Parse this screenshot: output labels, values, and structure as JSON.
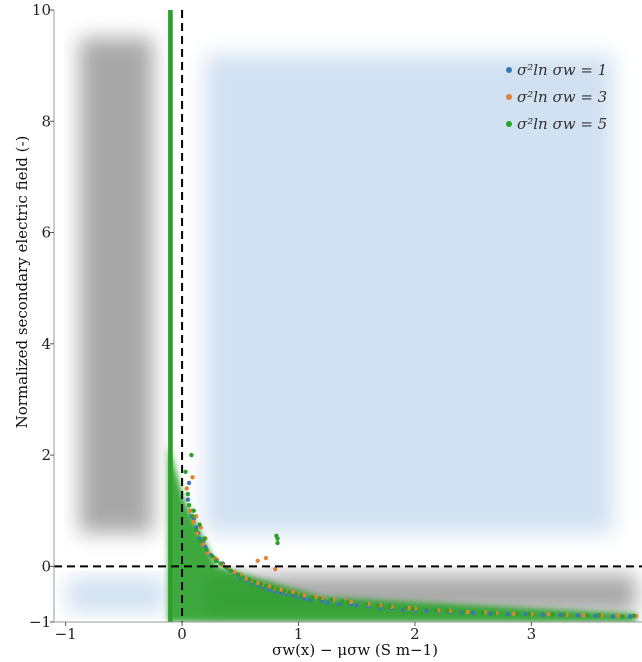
{
  "chart_data": {
    "type": "scatter",
    "xlabel": "σw(x) − μσw (S m−1)",
    "ylabel": "Normalized secondary electric field (-)",
    "xlim": [
      -1.1,
      3.95
    ],
    "ylim": [
      -1.0,
      10.0
    ],
    "x_ticks": [
      {
        "value": -1,
        "label": "−1"
      },
      {
        "value": 0,
        "label": "0"
      },
      {
        "value": 1,
        "label": "1"
      },
      {
        "value": 2,
        "label": "2"
      },
      {
        "value": 3,
        "label": "3"
      }
    ],
    "y_ticks": [
      {
        "value": -1,
        "label": "−1"
      },
      {
        "value": 0,
        "label": "0"
      },
      {
        "value": 2,
        "label": "2"
      },
      {
        "value": 4,
        "label": "4"
      },
      {
        "value": 6,
        "label": "6"
      },
      {
        "value": 8,
        "label": "8"
      },
      {
        "value": 10,
        "label": "10"
      }
    ],
    "grid": false,
    "legend_placement": "top-right",
    "reference_lines": [
      {
        "orientation": "vertical",
        "value": 0,
        "style": "dashed"
      },
      {
        "orientation": "horizontal",
        "value": 0,
        "style": "dashed"
      }
    ],
    "regions": [
      {
        "name": "upper-right",
        "x": [
          0.2,
          3.7
        ],
        "y": [
          0.6,
          9.2
        ],
        "color": "#c9dcef"
      },
      {
        "name": "lower-left",
        "x": [
          -0.98,
          -0.15
        ],
        "y": [
          -0.82,
          -0.2
        ],
        "color": "#c9dcef"
      },
      {
        "name": "upper-left",
        "x": [
          -0.88,
          -0.25
        ],
        "y": [
          0.6,
          9.5
        ],
        "color": "#9a9a9a"
      },
      {
        "name": "lower-right",
        "x": [
          0.2,
          3.9
        ],
        "y": [
          -0.85,
          -0.15
        ],
        "color": "#9a9a9a"
      }
    ],
    "series": [
      {
        "name": "σ²ln σw = 1",
        "color": "#3a78b5",
        "points": [
          [
            0.05,
            1.2
          ],
          [
            0.08,
            0.9
          ],
          [
            0.12,
            0.7
          ],
          [
            0.15,
            0.5
          ],
          [
            0.2,
            0.35
          ],
          [
            0.25,
            0.2
          ],
          [
            0.3,
            0.1
          ],
          [
            0.4,
            -0.05
          ],
          [
            0.5,
            -0.2
          ],
          [
            0.6,
            -0.3
          ],
          [
            0.7,
            -0.38
          ],
          [
            0.8,
            -0.45
          ],
          [
            0.9,
            -0.5
          ],
          [
            1.0,
            -0.55
          ],
          [
            1.1,
            -0.6
          ],
          [
            1.2,
            -0.62
          ],
          [
            1.35,
            -0.68
          ],
          [
            1.5,
            -0.7
          ],
          [
            1.7,
            -0.75
          ],
          [
            1.9,
            -0.78
          ],
          [
            2.1,
            -0.8
          ],
          [
            2.3,
            -0.82
          ],
          [
            2.5,
            -0.84
          ],
          [
            2.8,
            -0.86
          ],
          [
            3.1,
            -0.87
          ],
          [
            3.4,
            -0.88
          ],
          [
            3.7,
            -0.9
          ],
          [
            0.1,
            0.85
          ],
          [
            0.18,
            0.45
          ],
          [
            0.35,
            0.05
          ],
          [
            0.45,
            -0.12
          ],
          [
            0.55,
            -0.25
          ],
          [
            0.65,
            -0.33
          ],
          [
            0.75,
            -0.42
          ],
          [
            0.85,
            -0.48
          ],
          [
            0.95,
            -0.52
          ],
          [
            1.05,
            -0.58
          ],
          [
            1.25,
            -0.65
          ],
          [
            1.45,
            -0.69
          ],
          [
            1.6,
            -0.72
          ],
          [
            1.8,
            -0.76
          ],
          [
            2.0,
            -0.79
          ],
          [
            2.2,
            -0.81
          ],
          [
            2.4,
            -0.83
          ],
          [
            2.65,
            -0.85
          ],
          [
            2.95,
            -0.86
          ],
          [
            3.25,
            -0.87
          ],
          [
            3.55,
            -0.89
          ],
          [
            3.85,
            -0.9
          ],
          [
            0.06,
            1.5
          ],
          [
            0.14,
            0.6
          ]
        ]
      },
      {
        "name": "σ²ln σw = 3",
        "color": "#e08533",
        "points": [
          [
            0.04,
            1.4
          ],
          [
            0.07,
            1.0
          ],
          [
            0.1,
            0.8
          ],
          [
            0.13,
            0.6
          ],
          [
            0.18,
            0.4
          ],
          [
            0.22,
            0.25
          ],
          [
            0.28,
            0.15
          ],
          [
            0.35,
            0.02
          ],
          [
            0.45,
            -0.1
          ],
          [
            0.55,
            -0.22
          ],
          [
            0.65,
            -0.3
          ],
          [
            0.75,
            -0.36
          ],
          [
            0.85,
            -0.42
          ],
          [
            0.95,
            -0.46
          ],
          [
            1.05,
            -0.52
          ],
          [
            1.15,
            -0.55
          ],
          [
            1.3,
            -0.6
          ],
          [
            1.45,
            -0.64
          ],
          [
            1.6,
            -0.68
          ],
          [
            1.8,
            -0.73
          ],
          [
            2.0,
            -0.76
          ],
          [
            2.2,
            -0.79
          ],
          [
            2.45,
            -0.82
          ],
          [
            2.7,
            -0.84
          ],
          [
            3.0,
            -0.86
          ],
          [
            3.3,
            -0.87
          ],
          [
            3.6,
            -0.88
          ],
          [
            3.9,
            -0.89
          ],
          [
            0.12,
            0.9
          ],
          [
            0.2,
            0.5
          ],
          [
            0.3,
            0.12
          ],
          [
            0.4,
            -0.02
          ],
          [
            0.5,
            -0.15
          ],
          [
            0.6,
            -0.26
          ],
          [
            0.7,
            -0.33
          ],
          [
            0.8,
            -0.4
          ],
          [
            0.9,
            -0.45
          ],
          [
            1.0,
            -0.5
          ],
          [
            1.2,
            -0.57
          ],
          [
            1.4,
            -0.62
          ],
          [
            1.7,
            -0.7
          ],
          [
            1.95,
            -0.75
          ],
          [
            2.3,
            -0.8
          ],
          [
            2.6,
            -0.83
          ],
          [
            2.85,
            -0.85
          ],
          [
            3.15,
            -0.86
          ],
          [
            3.45,
            -0.88
          ],
          [
            3.75,
            -0.89
          ],
          [
            0.8,
            -0.05
          ],
          [
            0.65,
            0.1
          ],
          [
            0.72,
            0.15
          ],
          [
            0.09,
            1.6
          ],
          [
            0.16,
            0.7
          ]
        ]
      },
      {
        "name": "σ²ln σw = 5",
        "color": "#2ca02c",
        "points": [
          [
            0.03,
            1.7
          ],
          [
            0.06,
            1.1
          ],
          [
            0.09,
            0.9
          ],
          [
            0.12,
            0.65
          ],
          [
            0.16,
            0.45
          ],
          [
            0.21,
            0.3
          ],
          [
            0.26,
            0.18
          ],
          [
            0.33,
            0.05
          ],
          [
            0.42,
            -0.08
          ],
          [
            0.52,
            -0.2
          ],
          [
            0.62,
            -0.28
          ],
          [
            0.72,
            -0.35
          ],
          [
            0.82,
            -0.41
          ],
          [
            0.92,
            -0.47
          ],
          [
            1.02,
            -0.52
          ],
          [
            1.12,
            -0.56
          ],
          [
            1.28,
            -0.6
          ],
          [
            1.42,
            -0.64
          ],
          [
            1.58,
            -0.68
          ],
          [
            1.78,
            -0.72
          ],
          [
            1.98,
            -0.76
          ],
          [
            2.18,
            -0.79
          ],
          [
            2.42,
            -0.82
          ],
          [
            2.68,
            -0.84
          ],
          [
            2.98,
            -0.86
          ],
          [
            3.28,
            -0.87
          ],
          [
            3.58,
            -0.88
          ],
          [
            3.88,
            -0.89
          ],
          [
            0.1,
            1.0
          ],
          [
            0.19,
            0.5
          ],
          [
            0.29,
            0.1
          ],
          [
            0.38,
            -0.02
          ],
          [
            0.48,
            -0.15
          ],
          [
            0.58,
            -0.24
          ],
          [
            0.68,
            -0.32
          ],
          [
            0.78,
            -0.38
          ],
          [
            0.88,
            -0.44
          ],
          [
            0.98,
            -0.5
          ],
          [
            1.18,
            -0.58
          ],
          [
            1.38,
            -0.63
          ],
          [
            1.68,
            -0.7
          ],
          [
            1.92,
            -0.75
          ],
          [
            2.28,
            -0.8
          ],
          [
            2.58,
            -0.83
          ],
          [
            2.88,
            -0.85
          ],
          [
            3.18,
            -0.86
          ],
          [
            3.48,
            -0.88
          ],
          [
            3.78,
            -0.9
          ],
          [
            0.82,
            0.5
          ],
          [
            0.82,
            0.42
          ],
          [
            0.81,
            0.55
          ],
          [
            0.08,
            2.0
          ],
          [
            0.15,
            0.75
          ],
          [
            0.05,
            1.3
          ]
        ]
      }
    ],
    "dense_band": {
      "series": "σ²ln σw = 5",
      "color": "#2ca02c",
      "x_min": -0.12,
      "x_max": -0.08,
      "y_min": -1.0,
      "y_max": 10.0
    }
  },
  "legend": {
    "items": [
      {
        "label": "σ²ln σw = 1",
        "color": "#3a78b5"
      },
      {
        "label": "σ²ln σw = 3",
        "color": "#e08533"
      },
      {
        "label": "σ²ln σw = 5",
        "color": "#2ca02c"
      }
    ]
  }
}
